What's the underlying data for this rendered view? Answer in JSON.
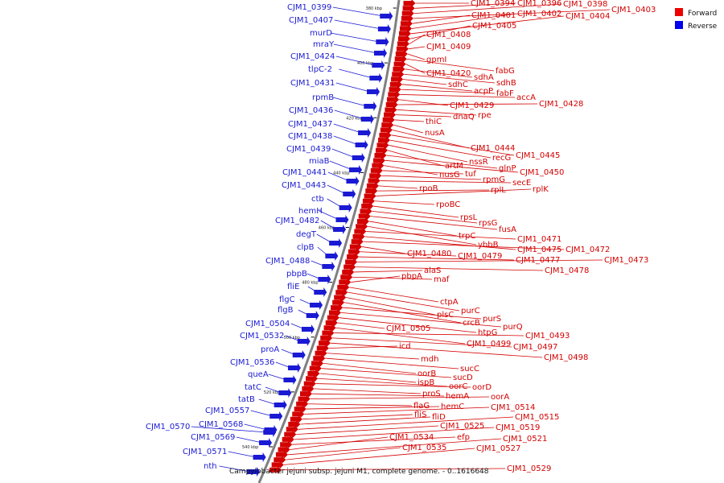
{
  "legend": {
    "forward": {
      "label": "Forward",
      "color": "#ee0000"
    },
    "reverse": {
      "label": "Reverse",
      "color": "#0000ee"
    }
  },
  "map_title": "Campylobacter jejuni subsp. jejuni M1, complete genome. - 0..1616648",
  "colors": {
    "backbone": "#808080",
    "forward": "#d40000",
    "reverse": "#1a1ad4"
  },
  "ticks": [
    "380 kbp",
    "400 kbp",
    "420 kbp",
    "440 kbp",
    "460 kbp",
    "480 kbp",
    "500 kbp",
    "520 kbp",
    "540 kbp"
  ],
  "reverse_labels": [
    "CJM1_0399",
    "CJM1_0407",
    "murD",
    "mraY",
    "CJM1_0424",
    "tlpC-2",
    "CJM1_0431",
    "rpmB",
    "CJM1_0436",
    "CJM1_0437",
    "CJM1_0438",
    "CJM1_0439",
    "miaB",
    "CJM1_0441",
    "CJM1_0443",
    "ctb",
    "hemH",
    "CJM1_0482",
    "degT",
    "clpB",
    "CJM1_0488",
    "pbpB",
    "fliE",
    "flgC",
    "flgB",
    "CJM1_0504",
    "CJM1_0532",
    "proA",
    "CJM1_0536",
    "queA",
    "tatC",
    "tatB",
    "CJM1_0557",
    "CJM1_0568",
    "CJM1_0570",
    "CJM1_0569",
    "CJM1_0571",
    "nth"
  ],
  "forward_labels": [
    "CJM1_0394",
    "CJM1_0396",
    "CJM1_0398",
    "CJM1_0403",
    "CJM1_0401",
    "CJM1_0402",
    "CJM1_0404",
    "CJM1_0405",
    "CJM1_0408",
    "CJM1_0409",
    "gpmI",
    "fabG",
    "CJM1_0420",
    "sdhA",
    "sdhB",
    "sdhC",
    "acpP",
    "fabF",
    "accA",
    "CJM1_0429",
    "CJM1_0428",
    "rpe",
    "dnaQ",
    "thiC",
    "nusA",
    "CJM1_0444",
    "CJM1_0445",
    "recG",
    "nssR",
    "artM",
    "glnP",
    "CJM1_0450",
    "nusG",
    "tuf",
    "rpmG",
    "secE",
    "rpoB",
    "rplL",
    "rplK",
    "rpoBC",
    "rpsL",
    "rpsG",
    "fusA",
    "trpC",
    "ybbB",
    "CJM1_0471",
    "CJM1_0475",
    "CJM1_0472",
    "CJM1_0480",
    "CJM1_0479",
    "CJM1_0477",
    "CJM1_0473",
    "CJM1_0478",
    "alaS",
    "maf",
    "pbpA",
    "ctpA",
    "purC",
    "plsC",
    "crcB",
    "purS",
    "purQ",
    "htpG",
    "CJM1_0505",
    "CJM1_0499",
    "CJM1_0493",
    "CJM1_0497",
    "CJM1_0498",
    "icd",
    "mdh",
    "sucC",
    "oorB",
    "sucD",
    "ispB",
    "oorC",
    "oorD",
    "proS",
    "hemA",
    "oorA",
    "flaG",
    "hemC",
    "CJM1_0514",
    "fliS",
    "fliD",
    "CJM1_0515",
    "CJM1_0525",
    "CJM1_0519",
    "efp",
    "CJM1_0534",
    "CJM1_0521",
    "CJM1_0535",
    "CJM1_0527",
    "CJM1_0529"
  ]
}
